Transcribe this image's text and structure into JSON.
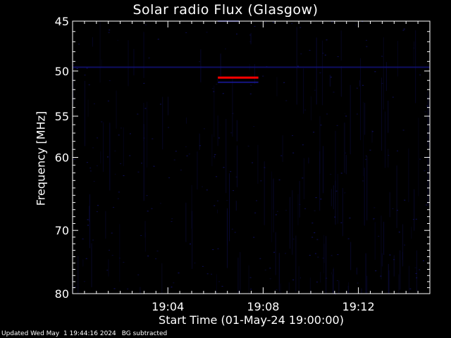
{
  "chart_data": {
    "type": "heatmap",
    "title": "Solar radio Flux (Glasgow)",
    "xlabel": "Start Time (01-May-24 19:00:00)",
    "ylabel": "Frequency [MHz]",
    "x_range_minutes": [
      0,
      15
    ],
    "x_ticks": [
      {
        "minute": 4,
        "label": "19:04"
      },
      {
        "minute": 8,
        "label": "19:08"
      },
      {
        "minute": 12,
        "label": "19:12"
      }
    ],
    "y_range_mhz": [
      45,
      80
    ],
    "y_scale": "log",
    "y_ticks": [
      45,
      50,
      55,
      60,
      70,
      80
    ],
    "background_color": "#000000",
    "noise_color": "#0a0a3a",
    "features": [
      {
        "name": "",
        "type": "band",
        "start_minute": 6.1,
        "end_minute": 7.8,
        "freq_mhz": 50.7,
        "color": "#ff0000"
      },
      {
        "name": "",
        "type": "band",
        "start_minute": 6.1,
        "end_minute": 7.8,
        "freq_mhz": 51.2,
        "color": "#1a1aa0"
      },
      {
        "name": "",
        "type": "band",
        "start_minute": 6.1,
        "end_minute": 7.0,
        "freq_mhz": 45.0,
        "color": "#1a1a80"
      },
      {
        "name": "",
        "type": "band",
        "start_minute": 0.0,
        "end_minute": 15.0,
        "freq_mhz": 49.6,
        "color": "#12127a"
      }
    ]
  },
  "footer": {
    "updated": "Updated Wed May  1 19:44:16 2024",
    "note": "BG subtracted"
  }
}
